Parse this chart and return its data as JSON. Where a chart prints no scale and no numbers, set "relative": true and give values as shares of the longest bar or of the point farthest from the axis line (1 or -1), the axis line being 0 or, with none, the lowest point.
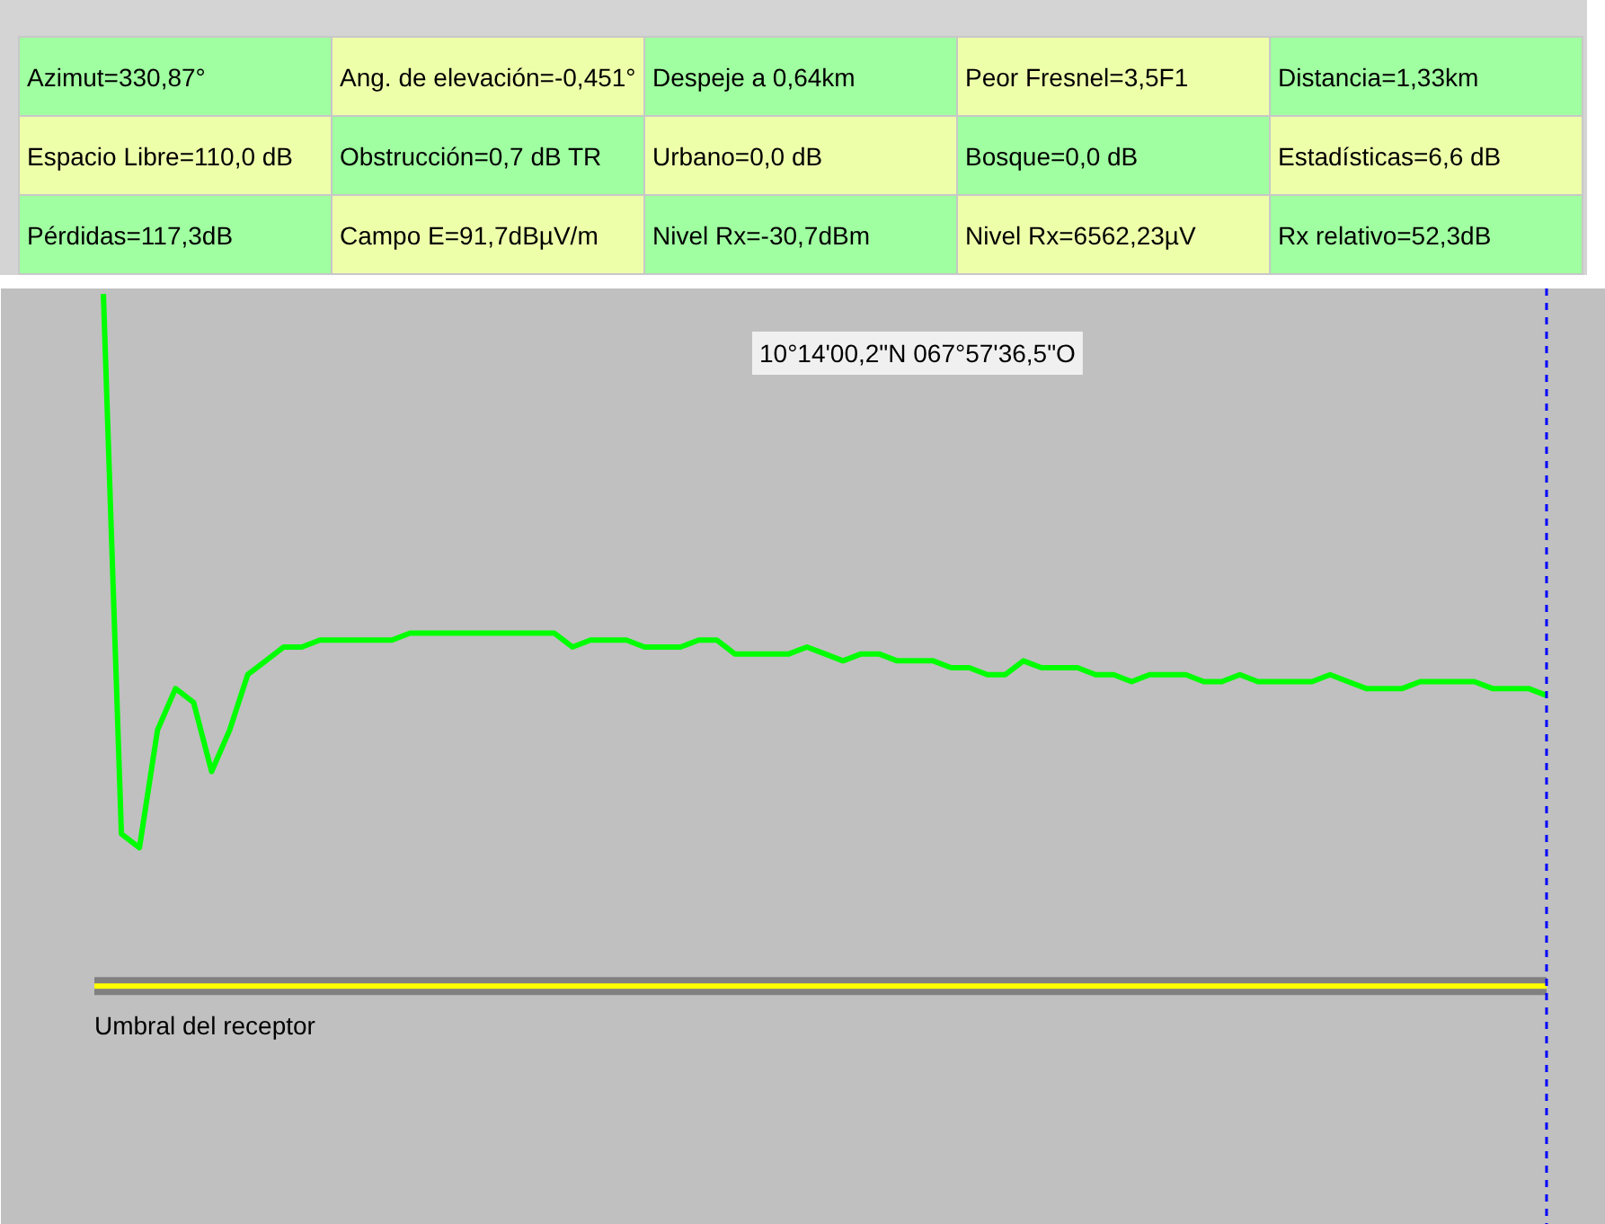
{
  "chart_data": {
    "type": "line",
    "relative": true,
    "annotations": [
      "Azimut=330,87°",
      "Ang. de elevación=-0,451°",
      "Despeje a 0,64km",
      "Peor Fresnel=3,5F1",
      "Distancia=1,33km",
      "Espacio Libre=110,0 dB",
      "Obstrucción=0,7 dB TR",
      "Urbano=0,0 dB",
      "Bosque=0,0 dB",
      "Estadísticas=6,6 dB",
      "Pérdidas=117,3dB",
      "Campo E=91,7dBµV/m",
      "Nivel Rx=-30,7dBm",
      "Nivel Rx=6562,23µV",
      "Rx relativo=52,3dB",
      "10°14'00,2\"N 067°57'36,5\"O"
    ],
    "categories": [
      null,
      null,
      null,
      null,
      null,
      null,
      null,
      null,
      null,
      null,
      null,
      null,
      null,
      null,
      null,
      null,
      null,
      null,
      null,
      null,
      null,
      null,
      null,
      null,
      null,
      null,
      null,
      null,
      null,
      null,
      null,
      null,
      null,
      null,
      null,
      null,
      null,
      null,
      null,
      null,
      null,
      null,
      null,
      null,
      null,
      null,
      null,
      null,
      null,
      null,
      null,
      null,
      null,
      null,
      null,
      null,
      null,
      null,
      null,
      null,
      null,
      null,
      null,
      null,
      null,
      null,
      null,
      null,
      null,
      null,
      null,
      null,
      null,
      null,
      null,
      null,
      null,
      null,
      null,
      null,
      null
    ],
    "series": [
      {
        "color": "#00ff00",
        "values": [
          1.0,
          0.22,
          0.2,
          0.37,
          0.43,
          0.41,
          0.31,
          0.37,
          0.45,
          0.47,
          0.49,
          0.49,
          0.5,
          0.5,
          0.5,
          0.5,
          0.5,
          0.51,
          0.51,
          0.51,
          0.51,
          0.51,
          0.51,
          0.51,
          0.51,
          0.51,
          0.49,
          0.5,
          0.5,
          0.5,
          0.49,
          0.49,
          0.49,
          0.5,
          0.5,
          0.48,
          0.48,
          0.48,
          0.48,
          0.49,
          0.48,
          0.47,
          0.48,
          0.48,
          0.47,
          0.47,
          0.47,
          0.46,
          0.46,
          0.45,
          0.45,
          0.47,
          0.46,
          0.46,
          0.46,
          0.45,
          0.45,
          0.44,
          0.45,
          0.45,
          0.45,
          0.44,
          0.44,
          0.45,
          0.44,
          0.44,
          0.44,
          0.44,
          0.45,
          0.44,
          0.43,
          0.43,
          0.43,
          0.44,
          0.44,
          0.44,
          0.44,
          0.43,
          0.43,
          0.43,
          0.42
        ]
      }
    ],
    "ref_lines": [
      {
        "axis": "y",
        "value": 0,
        "label": "Umbral del receptor",
        "color": "#ffff00",
        "line_style": "solid"
      }
    ]
  }
}
